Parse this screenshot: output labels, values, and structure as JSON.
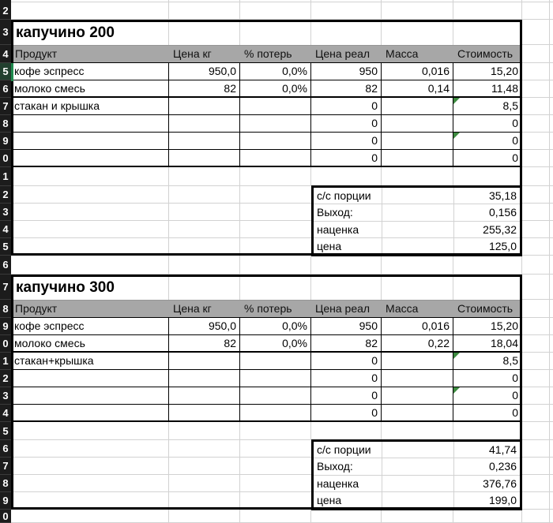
{
  "columns": [
    "Продукт",
    "Цена кг",
    "% потерь",
    "Цена реал",
    "Масса",
    "Стоимость"
  ],
  "tables": [
    {
      "title": "капучино 200",
      "rows": [
        [
          "кофе эспресс",
          "950,0",
          "0,0%",
          "950",
          "0,016",
          "15,20"
        ],
        [
          "молоко смесь",
          "82",
          "0,0%",
          "82",
          "0,14",
          "11,48"
        ],
        [
          "стакан и крышка",
          "",
          "",
          "0",
          "",
          "8,5"
        ],
        [
          "",
          "",
          "",
          "0",
          "",
          "0"
        ],
        [
          "",
          "",
          "",
          "0",
          "",
          "0"
        ],
        [
          "",
          "",
          "",
          "0",
          "",
          "0"
        ]
      ],
      "summary": [
        {
          "label": "с/с порции",
          "value": "35,18"
        },
        {
          "label": "Выход:",
          "value": "0,156"
        },
        {
          "label": "наценка",
          "value": "255,32"
        },
        {
          "label": "цена",
          "value": "125,0"
        }
      ]
    },
    {
      "title": "капучино 300",
      "rows": [
        [
          "кофе эспресс",
          "950,0",
          "0,0%",
          "950",
          "0,016",
          "15,20"
        ],
        [
          "молоко смесь",
          "82",
          "0,0%",
          "82",
          "0,22",
          "18,04"
        ],
        [
          "стакан+крышка",
          "",
          "",
          "0",
          "",
          "8,5"
        ],
        [
          "",
          "",
          "",
          "0",
          "",
          "0"
        ],
        [
          "",
          "",
          "",
          "0",
          "",
          "0"
        ],
        [
          "",
          "",
          "",
          "0",
          "",
          "0"
        ]
      ],
      "summary": [
        {
          "label": "с/с порции",
          "value": "41,74"
        },
        {
          "label": "Выход:",
          "value": "0,236"
        },
        {
          "label": "наценка",
          "value": "376,76"
        },
        {
          "label": "цена",
          "value": "199,0"
        }
      ]
    }
  ],
  "row_header_digits": [
    "2",
    "3",
    "4",
    "5",
    "6",
    "7",
    "8",
    "9",
    "0",
    "1",
    "2",
    "3",
    "4",
    "5",
    "6",
    "7",
    "8",
    "9",
    "0",
    "1",
    "2",
    "3",
    "4",
    "5",
    "6",
    "7",
    "8",
    "9",
    "0"
  ],
  "selected_row_index": 3,
  "indicators": {
    "triangle_row_indexes": [
      2,
      4
    ],
    "triangle_col_index": 5
  },
  "colors": {
    "header_bg": "#a7a7a7",
    "row_header_bg": "#1c1c1c",
    "row_header_selected_bg": "#22402f",
    "selection_green": "#1e8a4d",
    "triangle_green": "#3d8b40",
    "gridline_gray": "#d2d2d2",
    "border_black": "#000000"
  }
}
